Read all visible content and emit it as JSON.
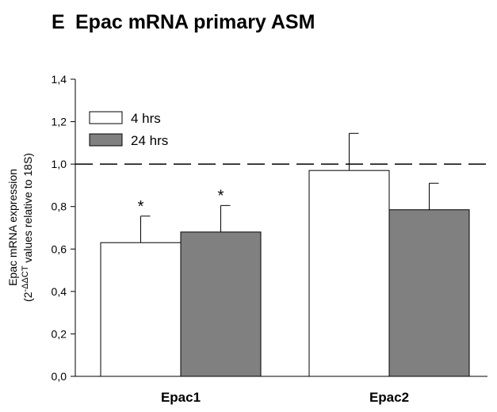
{
  "panel_label": "E",
  "chart_data": {
    "type": "bar",
    "title": "Epac mRNA primary ASM",
    "ylabel_line1": "Epac mRNA expression",
    "ylabel_line2_prefix": "(2",
    "ylabel_line2_sup": "-ΔΔCT",
    "ylabel_line2_suffix": " values relative to 18S)",
    "categories": [
      "Epac1",
      "Epac2"
    ],
    "series": [
      {
        "name": "4 hrs",
        "color": "#ffffff",
        "values": [
          0.63,
          0.97
        ],
        "errors": [
          0.125,
          0.175
        ]
      },
      {
        "name": "24 hrs",
        "color": "#808080",
        "values": [
          0.68,
          0.785
        ],
        "errors": [
          0.125,
          0.125
        ]
      }
    ],
    "significance": [
      {
        "category": 0,
        "series": 0,
        "mark": "*"
      },
      {
        "category": 0,
        "series": 1,
        "mark": "*"
      }
    ],
    "reference_line": 1.0,
    "ylim": [
      0,
      1.4
    ],
    "yticks": [
      "0,0",
      "0,2",
      "0,4",
      "0,6",
      "0,8",
      "1,0",
      "1,2",
      "1,4"
    ],
    "legend_position": "top-left"
  }
}
